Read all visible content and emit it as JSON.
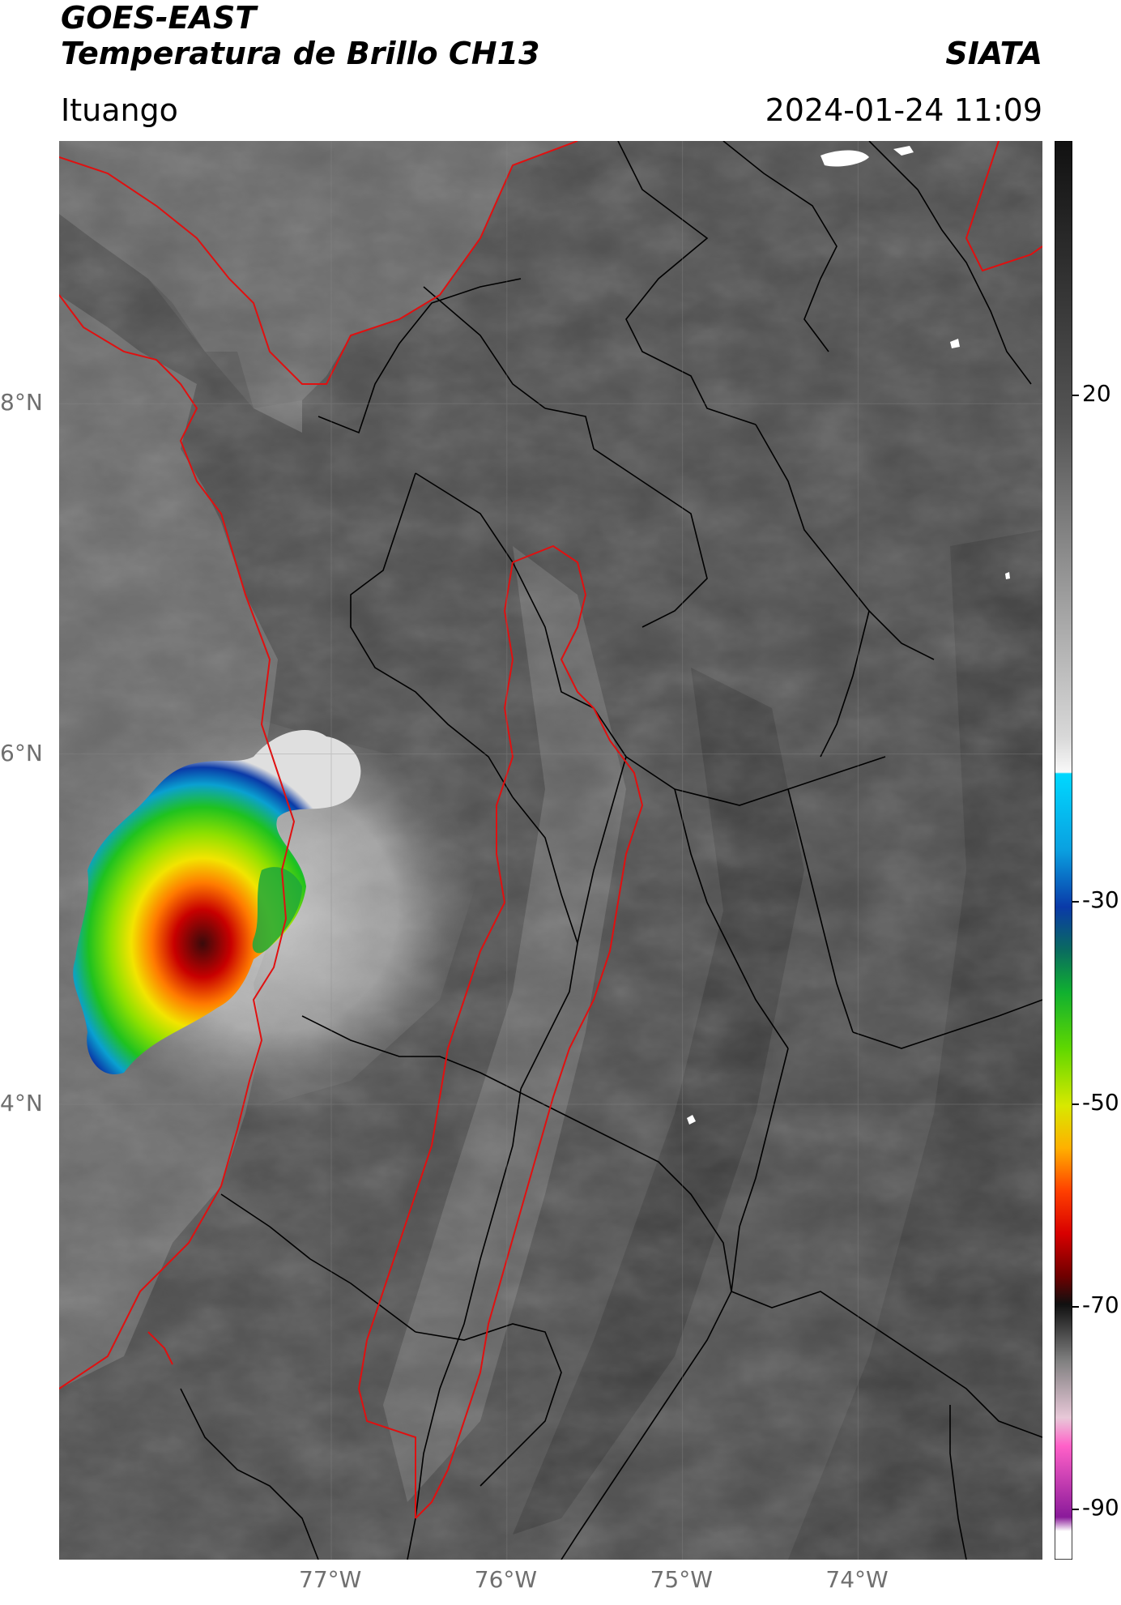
{
  "header": {
    "satellite": "GOES-EAST",
    "product": "Temperatura de Brillo CH13",
    "org": "SIATA",
    "region": "Ituango",
    "datetime": "2024-01-24 11:09"
  },
  "map": {
    "lon_labels": [
      "77°W",
      "76°W",
      "75°W",
      "74°W"
    ],
    "lat_labels": [
      "8°N",
      "6°N",
      "4°N"
    ],
    "lon_range": [
      -78.55,
      -72.95
    ],
    "lat_range": [
      1.4,
      9.5
    ],
    "lon_ticks": [
      -77,
      -76,
      -75,
      -74
    ],
    "lat_ticks": [
      8,
      6,
      4
    ],
    "colors": {
      "land_dark": "#4a4a4a",
      "sea": "#6b6b6b",
      "coastline": "#e01010",
      "boundary": "#000000",
      "grid": "#8a8a8a"
    }
  },
  "colorbar": {
    "tick_labels": [
      "20",
      "-30",
      "-50",
      "-70",
      "-90"
    ],
    "tick_values": [
      20,
      -30,
      -50,
      -70,
      -90
    ],
    "range": [
      -95,
      45
    ]
  }
}
